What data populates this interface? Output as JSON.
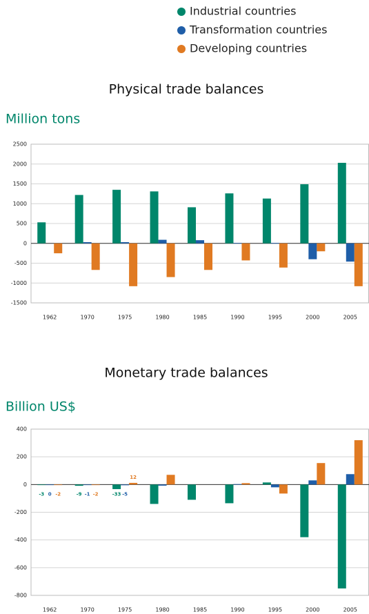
{
  "legend": [
    {
      "name": "Industrial countries",
      "color": "#00866b"
    },
    {
      "name": "Transformation countries",
      "color": "#1f5ea8"
    },
    {
      "name": "Developing countries",
      "color": "#e07a22"
    }
  ],
  "chart_data": [
    {
      "type": "bar",
      "title": "Physical trade balances",
      "y_label": "Million tons",
      "categories": [
        "1962",
        "1970",
        "1975",
        "1980",
        "1985",
        "1990",
        "1995",
        "2000",
        "2005"
      ],
      "series": [
        {
          "name": "Industrial countries",
          "color": "#00866b",
          "values": [
            530,
            1220,
            1350,
            1310,
            910,
            1260,
            1130,
            1490,
            2030
          ]
        },
        {
          "name": "Transformation countries",
          "color": "#1f5ea8",
          "values": [
            null,
            30,
            30,
            90,
            80,
            10,
            10,
            -400,
            -460
          ]
        },
        {
          "name": "Developing countries",
          "color": "#e07a22",
          "values": [
            -250,
            -670,
            -1080,
            -850,
            -670,
            -430,
            -610,
            -200,
            -1080
          ]
        }
      ],
      "ylim": [
        -1500,
        2500
      ],
      "yticks": [
        -1500,
        -1000,
        -500,
        0,
        500,
        1000,
        1500,
        2000,
        2500
      ],
      "grid": true
    },
    {
      "type": "bar",
      "title": "Monetary trade balances",
      "y_label": "Billion US$",
      "categories": [
        "1962",
        "1970",
        "1975",
        "1980",
        "1985",
        "1990",
        "1995",
        "2000",
        "2005"
      ],
      "series": [
        {
          "name": "Industrial countries",
          "color": "#00866b",
          "values": [
            -3,
            -9,
            -33,
            -140,
            -110,
            -135,
            15,
            -380,
            -750
          ]
        },
        {
          "name": "Transformation countries",
          "color": "#1f5ea8",
          "values": [
            0,
            -1,
            -5,
            -8,
            null,
            3,
            -20,
            30,
            75
          ]
        },
        {
          "name": "Developing countries",
          "color": "#e07a22",
          "values": [
            -2,
            -2,
            12,
            70,
            null,
            10,
            -65,
            155,
            320
          ]
        }
      ],
      "data_labels_for": [
        "1962",
        "1970",
        "1975"
      ],
      "ylim": [
        -800,
        400
      ],
      "yticks": [
        -800,
        -600,
        -400,
        -200,
        0,
        200,
        400
      ],
      "grid": true
    }
  ]
}
